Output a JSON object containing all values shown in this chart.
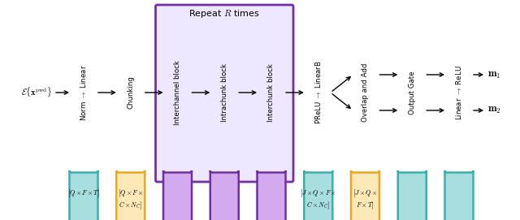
{
  "blocks": [
    {
      "label": "Norm $\\to$ Linear",
      "color": "#a8dede",
      "edge_color": "#3aafad",
      "type": "cyan"
    },
    {
      "label": "Chunking",
      "color": "#fde8b8",
      "edge_color": "#e8a820",
      "type": "orange"
    },
    {
      "label": "Interchannel block",
      "color": "#d4aaee",
      "edge_color": "#7030a0",
      "type": "purple"
    },
    {
      "label": "Intrachunk block",
      "color": "#d4aaee",
      "edge_color": "#7030a0",
      "type": "purple"
    },
    {
      "label": "Interchunk block",
      "color": "#d4aaee",
      "edge_color": "#7030a0",
      "type": "purple"
    },
    {
      "label": "PReLU $\\to$ LinearB",
      "color": "#a8dede",
      "edge_color": "#3aafad",
      "type": "cyan"
    },
    {
      "label": "Overlap and Add",
      "color": "#fde8b8",
      "edge_color": "#e8a820",
      "type": "orange"
    },
    {
      "label": "Output Gate",
      "color": "#a8dede",
      "edge_color": "#3aafad",
      "type": "cyan"
    },
    {
      "label": "Linear $\\to$ ReLU",
      "color": "#a8dede",
      "edge_color": "#3aafad",
      "type": "cyan"
    }
  ],
  "repeat_frame_color": "#7030a0",
  "repeat_bg": "#ede8ff",
  "repeat_label": "Repeat $R$ times",
  "input_label": "$\\mathcal{E}\\{\\mathbf{x}^{\\mathrm{pwd}}\\}$",
  "m1_label": "$\\mathbf{m}_1$",
  "m2_label": "$\\mathbf{m}_2$",
  "dim_labels": [
    {
      "block_idx": 0,
      "text": "$[Q \\times F \\times T]$",
      "lines": 1
    },
    {
      "block_idx": 1,
      "text": "$[Q \\times F \\times$\n$C \\times N_C]$",
      "lines": 2
    },
    {
      "block_idx": 5,
      "text": "$[J \\times Q \\times F \\times$\n$C \\times N_C]$",
      "lines": 2
    },
    {
      "block_idx": 6,
      "text": "$[J \\times Q \\times$\n$F \\times T]$",
      "lines": 2
    }
  ]
}
